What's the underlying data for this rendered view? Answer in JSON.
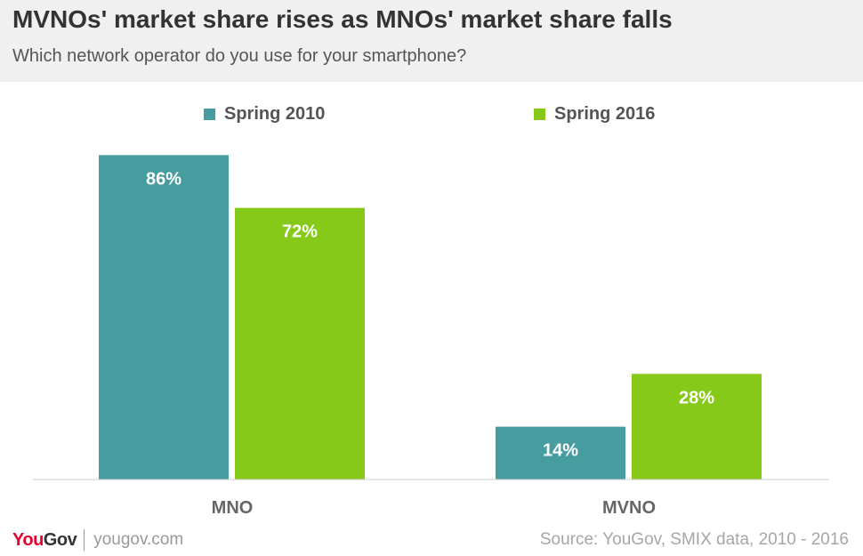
{
  "header": {
    "title": "MVNOs' market share rises as MNOs' market share falls",
    "subtitle": "Which network operator do you use for your smartphone?"
  },
  "footer": {
    "brand_you": "You",
    "brand_gov": "Gov",
    "brand_url": "yougov.com",
    "source": "Source: YouGov, SMIX data, 2010 - 2016"
  },
  "chart_data": {
    "type": "bar",
    "title": "MVNOs' market share rises as MNOs' market share falls",
    "subtitle": "Which network operator do you use for your smartphone?",
    "categories": [
      "MNO",
      "MVNO"
    ],
    "series": [
      {
        "name": "Spring 2010",
        "values": [
          86,
          14
        ],
        "labels": [
          "86%",
          "14%"
        ],
        "color": "#469c9f"
      },
      {
        "name": "Spring 2016",
        "values": [
          72,
          28
        ],
        "labels": [
          "72%",
          "28%"
        ],
        "color": "#86c919"
      }
    ],
    "ylim": [
      0,
      100
    ],
    "unit": "%",
    "grid": false,
    "legend_position": "top-center",
    "label_color": "#ffffff",
    "axis_color": "#cccccc",
    "category_label_color": "#666666"
  }
}
